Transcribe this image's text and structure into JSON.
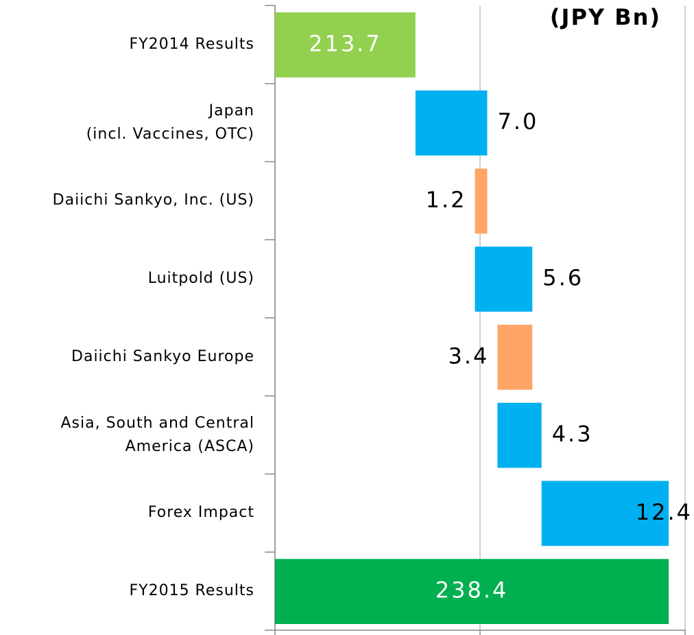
{
  "chart_data": {
    "type": "waterfall",
    "unit_label": "(JPY Bn)",
    "categories": [
      "FY2014 Results",
      "Japan\n(incl. Vaccines, OTC)",
      "Daiichi Sankyo, Inc. (US)",
      "Luitpold (US)",
      "Daiichi Sankyo Europe",
      "Asia, South and Central\nAmerica (ASCA)",
      "Forex Impact",
      "FY2015 Results"
    ],
    "values": [
      213.7,
      7.0,
      -1.2,
      5.6,
      -3.4,
      4.3,
      12.4,
      238.4
    ],
    "value_labels": [
      "213.7",
      "7.0",
      "1.2",
      "5.6",
      "3.4",
      "4.3",
      "12.4",
      "238.4"
    ],
    "measure": [
      "absolute",
      "relative",
      "relative",
      "relative",
      "relative",
      "relative",
      "relative",
      "absolute"
    ],
    "colors": [
      "#92d050",
      "#00b0f0",
      "#ffa566",
      "#00b0f0",
      "#ffa566",
      "#00b0f0",
      "#00b0f0",
      "#00b050"
    ],
    "xlim": [
      200,
      240
    ],
    "xticks": [
      200,
      220,
      240
    ],
    "grid": true
  }
}
